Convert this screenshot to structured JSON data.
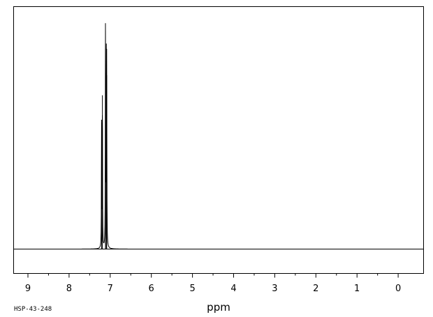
{
  "chart_data": {
    "type": "line",
    "title": "",
    "xlabel": "ppm",
    "ylabel": "",
    "xlim": [
      9.48,
      -0.6
    ],
    "ylim": [
      -0.1,
      1.0
    ],
    "x_reversed": true,
    "grid": false,
    "legend": "none",
    "baseline": 0,
    "x_ticks": [
      {
        "value": 9,
        "label": "9"
      },
      {
        "value": 8,
        "label": "8"
      },
      {
        "value": 7,
        "label": "7"
      },
      {
        "value": 6,
        "label": "6"
      },
      {
        "value": 5,
        "label": "5"
      },
      {
        "value": 4,
        "label": "4"
      },
      {
        "value": 3,
        "label": "3"
      },
      {
        "value": 2,
        "label": "2"
      },
      {
        "value": 1,
        "label": "1"
      },
      {
        "value": 0,
        "label": "0"
      }
    ],
    "minor_x_ticks": [
      8.5,
      7.5,
      6.5,
      5.5,
      4.5,
      3.5,
      2.5,
      1.5,
      0.5
    ],
    "peaks": [
      {
        "ppm": 7.21,
        "intensity": 0.58
      },
      {
        "ppm": 7.19,
        "intensity": 0.69
      },
      {
        "ppm": 7.115,
        "intensity": 0.98
      },
      {
        "ppm": 7.095,
        "intensity": 0.79
      },
      {
        "ppm": 7.085,
        "intensity": 0.78
      }
    ],
    "line_color": "#000000",
    "sample_id": "HSP-43-248"
  }
}
